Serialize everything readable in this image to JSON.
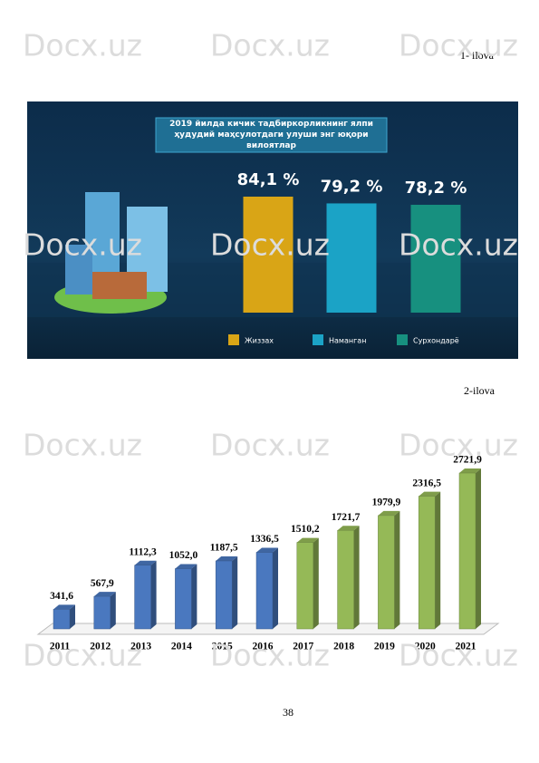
{
  "header": {
    "annex_1": "1-    ilova",
    "annex_2": "2-ilova"
  },
  "watermark": "Docx.uz",
  "page_number": "38",
  "chart_data": [
    {
      "type": "bar",
      "title": "2019 йилда кичик тадбиркорликнинг ялпи ҳудудий маҳсулотдаги улуши энг юқори вилоятлар",
      "categories": [
        "Жиззах",
        "Наманган",
        "Сурхондарё"
      ],
      "values": [
        84.1,
        79.2,
        78.2
      ],
      "value_labels": [
        "84,1 %",
        "79,2 %",
        "78,2 %"
      ],
      "colors": [
        "#d9a516",
        "#1ba3c6",
        "#17907f"
      ]
    },
    {
      "type": "bar",
      "categories": [
        "2011",
        "2012",
        "2013",
        "2014",
        "2015",
        "2016",
        "2017",
        "2018",
        "2019",
        "2020",
        "2021"
      ],
      "values": [
        341.6,
        567.9,
        1112.3,
        1052.0,
        1187.5,
        1336.5,
        1510.2,
        1721.7,
        1979.9,
        2316.5,
        2721.9
      ],
      "value_labels": [
        "341,6",
        "567,9",
        "1112,3",
        "1052,0",
        "1187,5",
        "1336,5",
        "1510,2",
        "1721,7",
        "1979,9",
        "2316,5",
        "2721,9"
      ],
      "colors": [
        "#4a78bf",
        "#4a78bf",
        "#4a78bf",
        "#4a78bf",
        "#4a78bf",
        "#4a78bf",
        "#95b957",
        "#95b957",
        "#95b957",
        "#95b957",
        "#95b957"
      ]
    }
  ]
}
